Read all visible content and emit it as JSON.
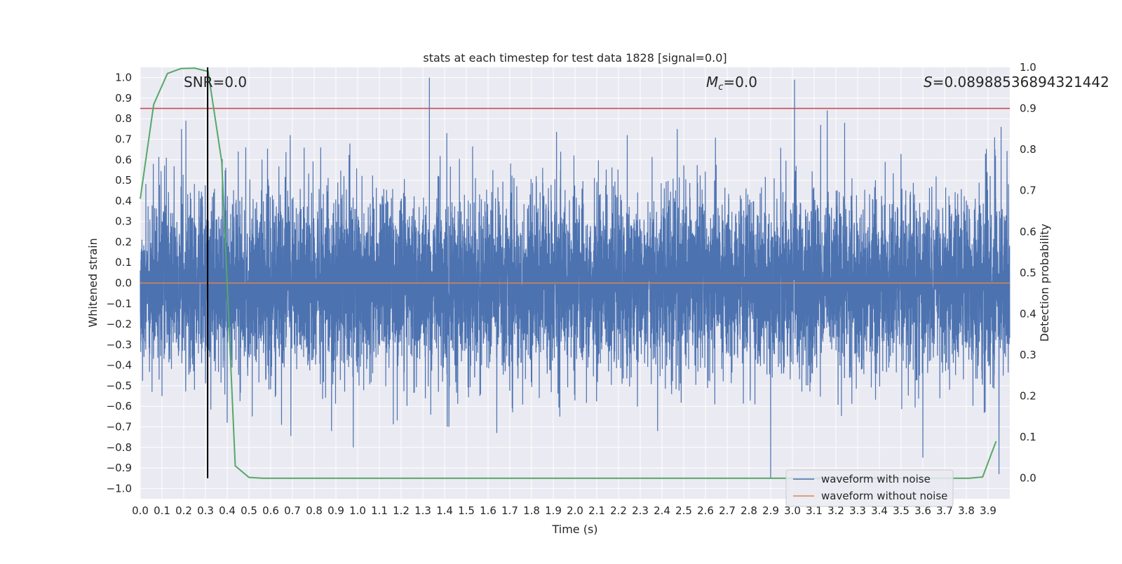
{
  "chart_data": {
    "type": "line",
    "title": "stats at each timestep for test data 1828 [signal=0.0]",
    "xlabel": "Time (s)",
    "ylabel_left": "Whitened strain",
    "ylabel_right": "Detection probability",
    "xlim": [
      0.0,
      4.0
    ],
    "ylim_left": [
      -1.05,
      1.05
    ],
    "ylim_right": [
      -0.05,
      1.0
    ],
    "x_ticks": [
      "0.0",
      "0.1",
      "0.2",
      "0.3",
      "0.4",
      "0.5",
      "0.6",
      "0.7",
      "0.8",
      "0.9",
      "1.0",
      "1.1",
      "1.2",
      "1.3",
      "1.4",
      "1.5",
      "1.6",
      "1.7",
      "1.8",
      "1.9",
      "2.0",
      "2.1",
      "2.2",
      "2.3",
      "2.4",
      "2.5",
      "2.6",
      "2.7",
      "2.8",
      "2.9",
      "3.0",
      "3.1",
      "3.2",
      "3.3",
      "3.4",
      "3.5",
      "3.6",
      "3.7",
      "3.8",
      "3.9"
    ],
    "y_ticks_left": [
      "1.0",
      "0.9",
      "0.8",
      "0.7",
      "0.6",
      "0.5",
      "0.4",
      "0.3",
      "0.2",
      "0.1",
      "0.0",
      "−0.1",
      "−0.2",
      "−0.3",
      "−0.4",
      "−0.5",
      "−0.6",
      "−0.7",
      "−0.8",
      "−0.9",
      "−1.0"
    ],
    "y_ticks_right": [
      "1.0",
      "0.9",
      "0.8",
      "0.7",
      "0.6",
      "0.5",
      "0.4",
      "0.3",
      "0.2",
      "0.1",
      "0.0"
    ],
    "grid": true,
    "legend_placement": "lower-right",
    "annotations": {
      "snr": "SNR=0.0",
      "mc_symbol": "M",
      "mc_sub": "c",
      "mc_value": "=0.0",
      "s_symbol": "S",
      "s_value": "=0.0898853689432144​2"
    },
    "threshold_right": 0.9,
    "marker_time": 0.31,
    "series": [
      {
        "name": "waveform with noise",
        "color": "#4c72b0",
        "axis": "left",
        "kind": "noise",
        "sample_rate": 2048,
        "envelope_p99": 0.55,
        "spikes": [
          {
            "t": 0.19,
            "v": 0.75
          },
          {
            "t": 0.21,
            "v": 0.79
          },
          {
            "t": 0.06,
            "v": 0.58
          },
          {
            "t": 0.12,
            "v": 0.61
          },
          {
            "t": 0.69,
            "v": 0.72
          },
          {
            "t": 0.83,
            "v": 0.66
          },
          {
            "t": 1.33,
            "v": 1.0
          },
          {
            "t": 1.41,
            "v": 0.73
          },
          {
            "t": 2.24,
            "v": 0.72
          },
          {
            "t": 2.47,
            "v": 0.75
          },
          {
            "t": 3.01,
            "v": 0.99
          },
          {
            "t": 3.16,
            "v": 0.84
          },
          {
            "t": 3.24,
            "v": 0.78
          },
          {
            "t": 3.13,
            "v": 0.77
          },
          {
            "t": 3.93,
            "v": 0.71
          },
          {
            "t": 3.96,
            "v": 0.76
          },
          {
            "t": 0.98,
            "v": -0.8
          },
          {
            "t": 1.42,
            "v": -0.7
          },
          {
            "t": 1.64,
            "v": -0.73
          },
          {
            "t": 2.9,
            "v": -0.95
          },
          {
            "t": 3.6,
            "v": -0.85
          },
          {
            "t": 3.95,
            "v": -0.93
          },
          {
            "t": 2.38,
            "v": -0.72
          },
          {
            "t": 0.4,
            "v": -0.68
          },
          {
            "t": 0.65,
            "v": -0.69
          },
          {
            "t": 0.1,
            "v": -0.55
          },
          {
            "t": 0.88,
            "v": -0.72
          },
          {
            "t": 1.93,
            "v": -0.65
          }
        ]
      },
      {
        "name": "waveform without noise",
        "color": "#dd8452",
        "axis": "left",
        "x": [
          0.0,
          4.0
        ],
        "y": [
          0.0,
          0.0
        ]
      },
      {
        "name": "detection probability",
        "color": "#55a868",
        "axis": "right",
        "x": [
          0.0,
          0.062,
          0.125,
          0.187,
          0.25,
          0.312,
          0.375,
          0.437,
          0.5,
          0.562,
          0.625,
          3.625,
          3.687,
          3.75,
          3.812,
          3.875,
          3.937
        ],
        "y": [
          0.68,
          0.91,
          0.985,
          0.997,
          0.998,
          0.99,
          0.77,
          0.03,
          0.002,
          0.0,
          0.0,
          0.0,
          0.0,
          0.0,
          0.0,
          0.003,
          0.09
        ]
      }
    ],
    "legend": [
      "waveform with noise",
      "waveform without noise"
    ],
    "colors": {
      "plot_background": "#eaeaf2",
      "grid": "#ffffff",
      "threshold_line": "#c44e52",
      "marker_line": "#000000"
    }
  }
}
